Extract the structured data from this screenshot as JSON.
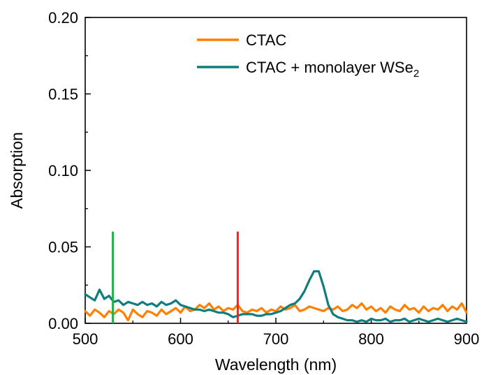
{
  "chart_data": {
    "type": "line",
    "xlabel": "Wavelength (nm)",
    "ylabel": "Absorption",
    "xlim": [
      500,
      900
    ],
    "ylim": [
      0.0,
      0.2
    ],
    "x_ticks": [
      500,
      600,
      700,
      800,
      900
    ],
    "x_tick_labels": [
      "500",
      "600",
      "700",
      "800",
      "900"
    ],
    "y_ticks": [
      0.0,
      0.05,
      0.1,
      0.15,
      0.2
    ],
    "y_tick_labels": [
      "0.00",
      "0.05",
      "0.10",
      "0.15",
      "0.20"
    ],
    "legend_position": "top-right",
    "grid": false,
    "series": [
      {
        "name": "CTAC",
        "color": "#ff8000",
        "x": [
          500,
          505,
          510,
          515,
          520,
          525,
          530,
          535,
          540,
          545,
          550,
          555,
          560,
          565,
          570,
          575,
          580,
          585,
          590,
          595,
          600,
          605,
          610,
          615,
          620,
          625,
          630,
          635,
          640,
          645,
          650,
          655,
          660,
          665,
          670,
          675,
          680,
          685,
          690,
          695,
          700,
          705,
          710,
          715,
          720,
          725,
          730,
          735,
          740,
          745,
          750,
          755,
          760,
          765,
          770,
          775,
          780,
          785,
          790,
          795,
          800,
          805,
          810,
          815,
          820,
          825,
          830,
          835,
          840,
          845,
          850,
          855,
          860,
          865,
          870,
          875,
          880,
          885,
          890,
          895,
          900
        ],
        "values": [
          0.008,
          0.005,
          0.009,
          0.007,
          0.004,
          0.008,
          0.006,
          0.009,
          0.007,
          0.002,
          0.009,
          0.006,
          0.004,
          0.008,
          0.007,
          0.005,
          0.009,
          0.006,
          0.008,
          0.01,
          0.007,
          0.011,
          0.008,
          0.009,
          0.012,
          0.01,
          0.013,
          0.009,
          0.011,
          0.008,
          0.01,
          0.009,
          0.012,
          0.008,
          0.007,
          0.009,
          0.008,
          0.01,
          0.007,
          0.009,
          0.008,
          0.011,
          0.009,
          0.01,
          0.012,
          0.008,
          0.009,
          0.011,
          0.01,
          0.009,
          0.008,
          0.01,
          0.009,
          0.011,
          0.008,
          0.009,
          0.012,
          0.01,
          0.013,
          0.009,
          0.011,
          0.008,
          0.01,
          0.007,
          0.011,
          0.009,
          0.008,
          0.012,
          0.009,
          0.01,
          0.007,
          0.011,
          0.008,
          0.01,
          0.009,
          0.012,
          0.008,
          0.011,
          0.009,
          0.013,
          0.007
        ],
        "values_note": ""
      },
      {
        "name": "CTAC + monolayer WSe2",
        "color": "#0f7d7d",
        "x": [
          500,
          505,
          510,
          515,
          520,
          525,
          530,
          535,
          540,
          545,
          550,
          555,
          560,
          565,
          570,
          575,
          580,
          585,
          590,
          595,
          600,
          605,
          610,
          615,
          620,
          625,
          630,
          635,
          640,
          645,
          650,
          655,
          660,
          665,
          670,
          675,
          680,
          685,
          690,
          695,
          700,
          705,
          710,
          715,
          720,
          725,
          730,
          735,
          740,
          745,
          750,
          755,
          760,
          765,
          770,
          775,
          780,
          785,
          790,
          795,
          800,
          805,
          810,
          815,
          820,
          825,
          830,
          835,
          840,
          845,
          850,
          855,
          860,
          865,
          870,
          875,
          880,
          885,
          890,
          895,
          900
        ],
        "values": [
          0.019,
          0.017,
          0.015,
          0.022,
          0.016,
          0.018,
          0.014,
          0.015,
          0.012,
          0.014,
          0.013,
          0.012,
          0.014,
          0.012,
          0.013,
          0.011,
          0.014,
          0.012,
          0.013,
          0.015,
          0.012,
          0.011,
          0.01,
          0.009,
          0.009,
          0.008,
          0.009,
          0.008,
          0.007,
          0.007,
          0.006,
          0.004,
          0.005,
          0.006,
          0.006,
          0.006,
          0.005,
          0.005,
          0.006,
          0.006,
          0.007,
          0.008,
          0.01,
          0.012,
          0.013,
          0.016,
          0.021,
          0.028,
          0.034,
          0.034,
          0.024,
          0.012,
          0.006,
          0.004,
          0.003,
          0.002,
          0.002,
          0.001,
          0.002,
          0.001,
          0.003,
          0.002,
          0.002,
          0.003,
          0.001,
          0.002,
          0.002,
          0.003,
          0.001,
          0.002,
          0.003,
          0.002,
          0.001,
          0.002,
          0.003,
          0.002,
          0.001,
          0.002,
          0.003,
          0.002,
          0.001
        ]
      }
    ],
    "markers": [
      {
        "x": 529,
        "color": "#22b04b",
        "y_range": [
          0.0,
          0.06
        ]
      },
      {
        "x": 660,
        "color": "#ff1c1c",
        "y_range": [
          0.0,
          0.06
        ]
      }
    ]
  },
  "legend": {
    "items": [
      {
        "label": "CTAC",
        "color": "#ff8000"
      },
      {
        "label": "CTAC + monolayer WSe",
        "subscript": "2",
        "color": "#0f7d7d"
      }
    ]
  }
}
